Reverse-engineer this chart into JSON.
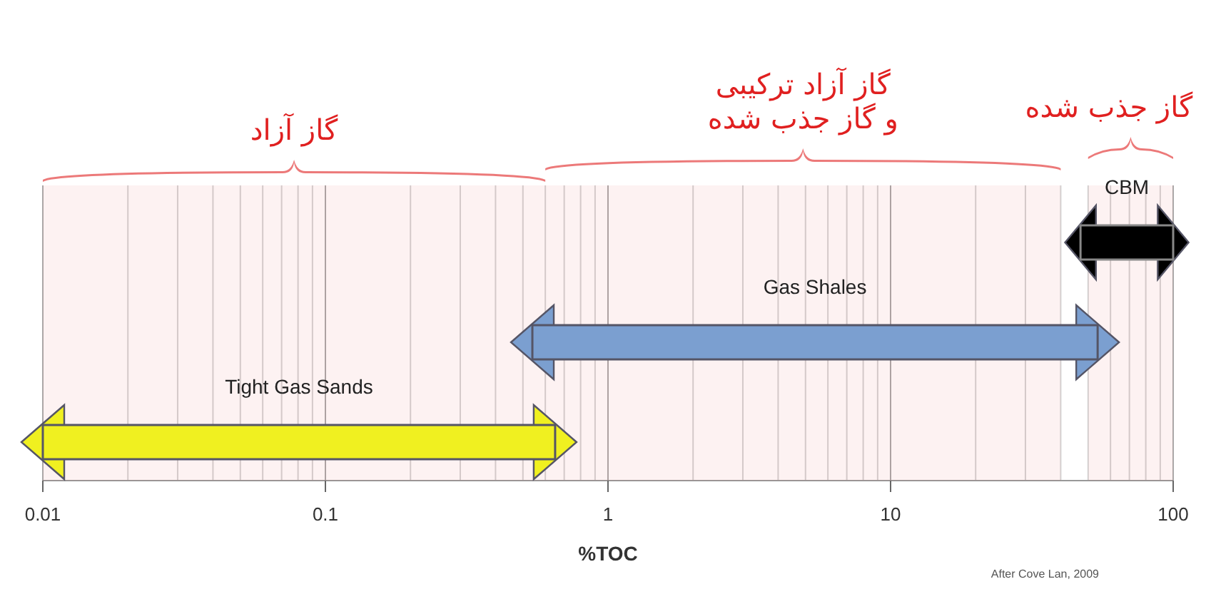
{
  "chart_data": {
    "type": "bar",
    "orientation": "horizontal",
    "log": "x",
    "categories": [
      "CBM",
      "Gas Shales",
      "Tight Gas Sands"
    ],
    "base": [
      47,
      0.54,
      0.01
    ],
    "values": [
      53,
      53.5,
      0.64
    ],
    "colors": [
      "#000000",
      "#7b9fd0",
      "#f0f020"
    ],
    "xlim": [
      0.01,
      100
    ],
    "xticks": [
      0.01,
      0.1,
      1,
      10,
      100
    ],
    "xlabel": "%TOC",
    "grid": "x",
    "bands": [
      {
        "axis": "x",
        "from": 0.01,
        "to": 0.6,
        "label": "گاز آزاد",
        "color": "#e02020"
      },
      {
        "axis": "x",
        "from": 0.6,
        "to": 40,
        "label": "گاز آزاد ترکیبی\nو گاز جذب شده",
        "color": "#e02020"
      },
      {
        "axis": "x",
        "from": 50,
        "to": 100,
        "label": "گاز جذب شده",
        "color": "#e02020"
      }
    ],
    "annotations": [
      "After Cove Lan, 2009"
    ]
  }
}
